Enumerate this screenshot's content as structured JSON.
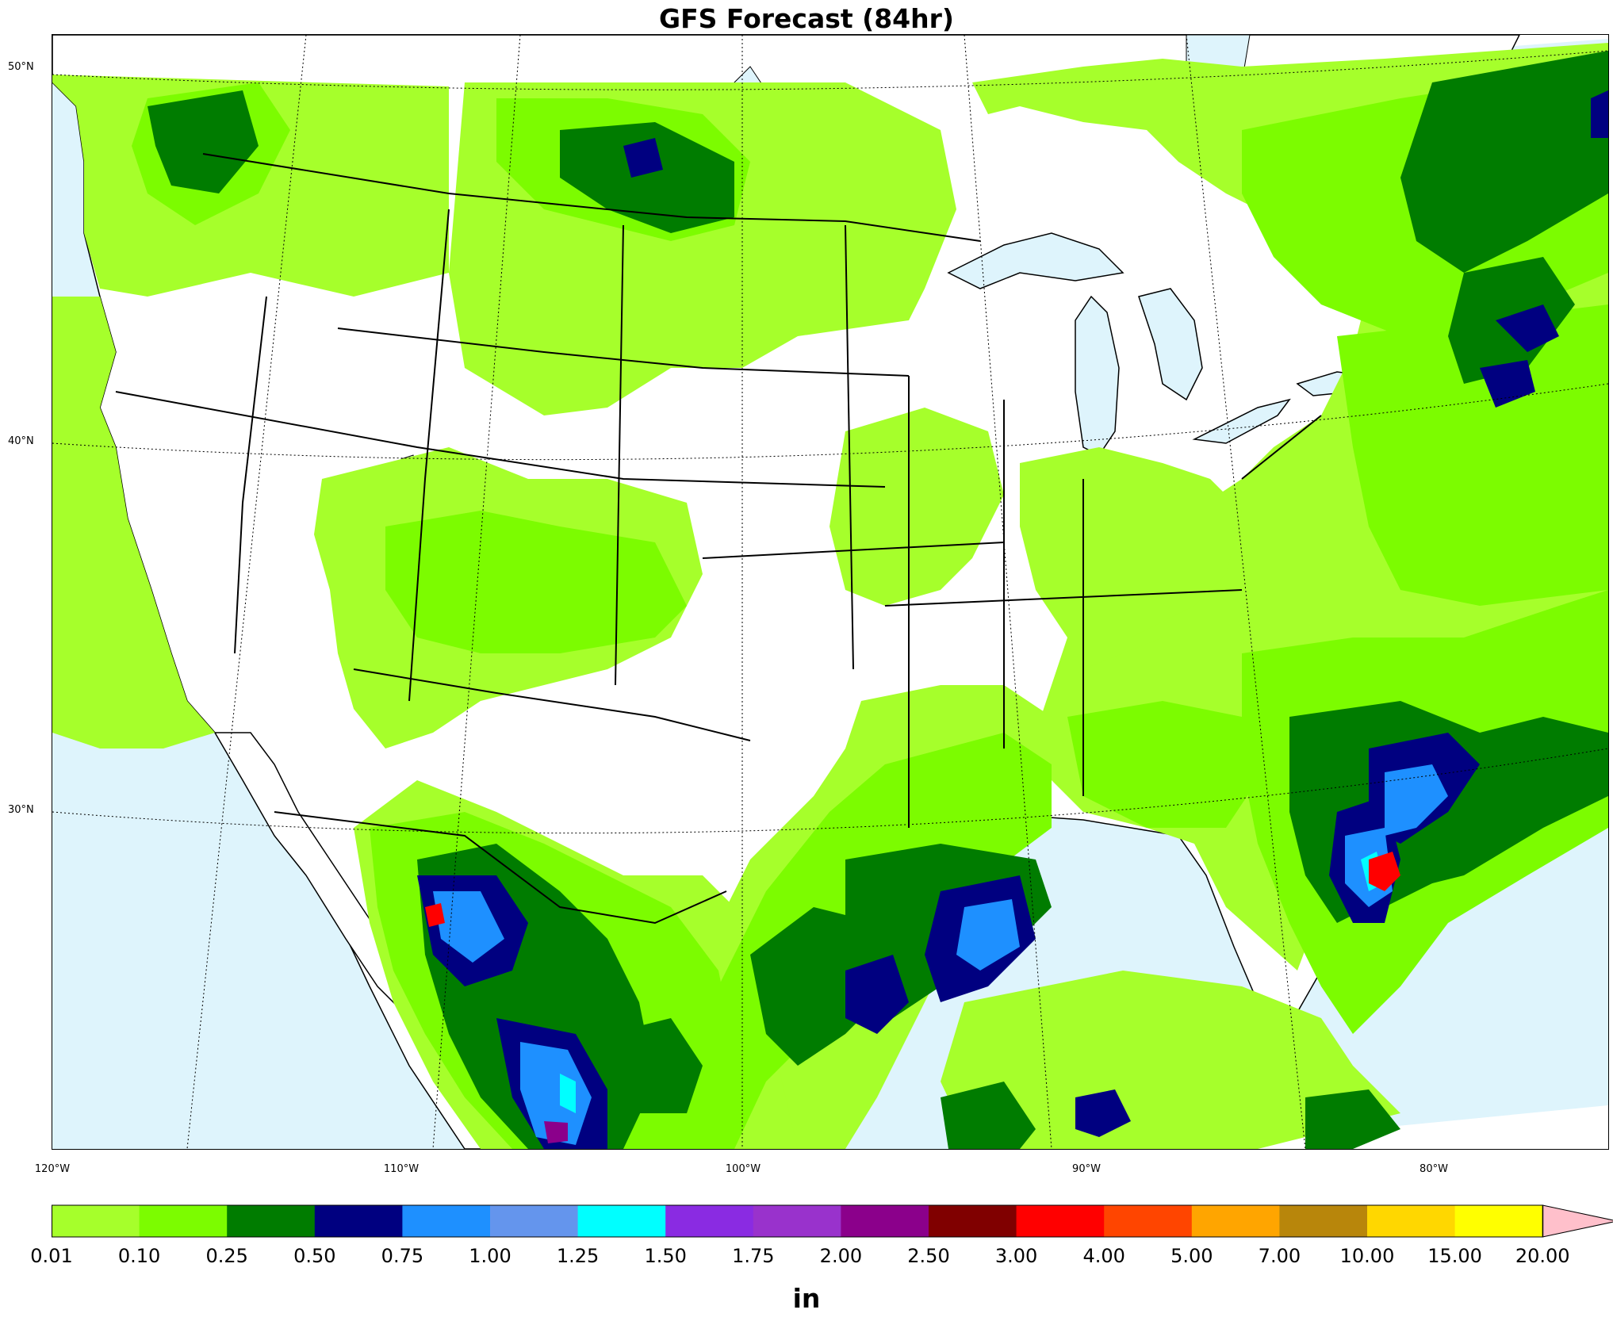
{
  "title": "GFS Forecast (84hr)",
  "units": "in",
  "lat_labels": [
    "50°N",
    "40°N",
    "30°N"
  ],
  "lon_labels": [
    "120°W",
    "110°W",
    "100°W",
    "90°W",
    "80°W"
  ],
  "colorbar": {
    "levels": [
      "0.01",
      "0.10",
      "0.25",
      "0.50",
      "0.75",
      "1.00",
      "1.25",
      "1.50",
      "1.75",
      "2.00",
      "2.50",
      "3.00",
      "4.00",
      "5.00",
      "7.00",
      "10.00",
      "15.00",
      "20.00"
    ],
    "colors": [
      "#a6ff2b",
      "#7cfc00",
      "#007c00",
      "#000080",
      "#1e90ff",
      "#6495ed",
      "#00ffff",
      "#8a2be2",
      "#9932cc",
      "#8b008b",
      "#800000",
      "#ff0000",
      "#ff4500",
      "#ffa500",
      "#b8860b",
      "#ffd700",
      "#ffff00"
    ],
    "extend_color": "#ffc0cb"
  },
  "colors": {
    "water": "#def4fc",
    "land": "#ffffff",
    "boundary": "#000000"
  }
}
